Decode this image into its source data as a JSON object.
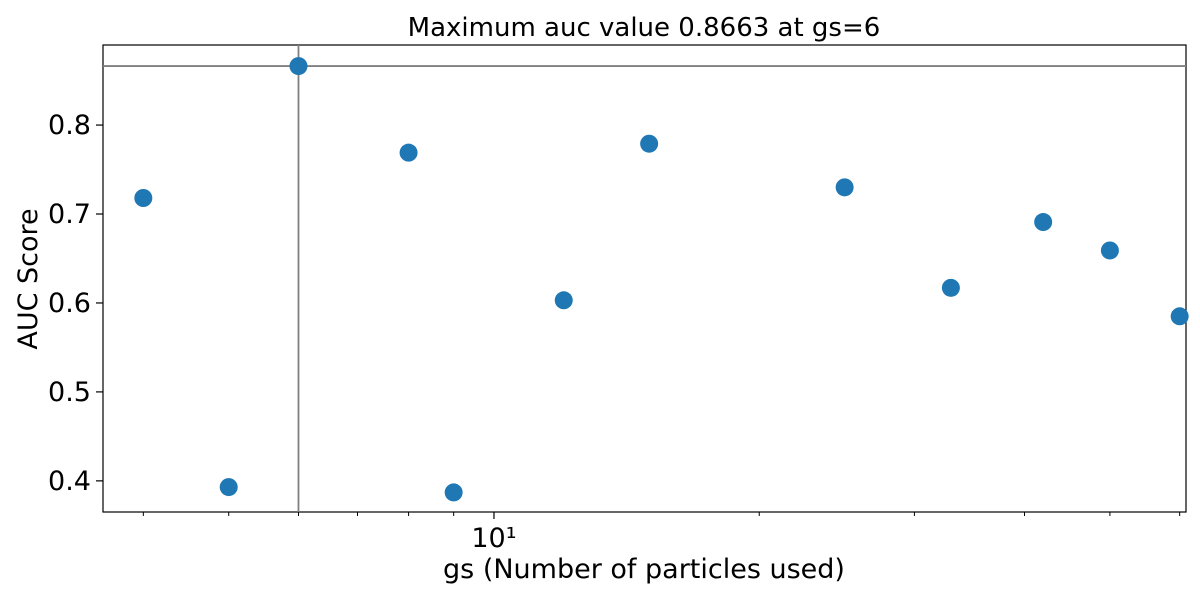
{
  "chart_data": {
    "type": "scatter",
    "title": "Maximum auc value 0.8663 at gs=6",
    "xlabel": "gs (Number of particles used)",
    "ylabel": "AUC Score",
    "xscale": "log",
    "xlim": [
      3.6,
      61
    ],
    "ylim": [
      0.365,
      0.89
    ],
    "yticks": [
      0.4,
      0.5,
      0.6,
      0.7,
      0.8
    ],
    "ytick_labels": [
      "0.4",
      "0.5",
      "0.6",
      "0.7",
      "0.8"
    ],
    "xtick_major": [
      10
    ],
    "xtick_major_labels": [
      "10¹"
    ],
    "xtick_minor": [
      4,
      5,
      6,
      7,
      8,
      9,
      20,
      30,
      40,
      50,
      60
    ],
    "point_color": "#1f77b4",
    "reference_line_color": "#808080",
    "max_point": {
      "x": 6,
      "y": 0.8663
    },
    "x": [
      4,
      5,
      6,
      8,
      9,
      12,
      15,
      25,
      33,
      42,
      50,
      60
    ],
    "y": [
      0.718,
      0.393,
      0.8663,
      0.769,
      0.387,
      0.603,
      0.779,
      0.73,
      0.617,
      0.691,
      0.659,
      0.585
    ],
    "grid": false
  }
}
